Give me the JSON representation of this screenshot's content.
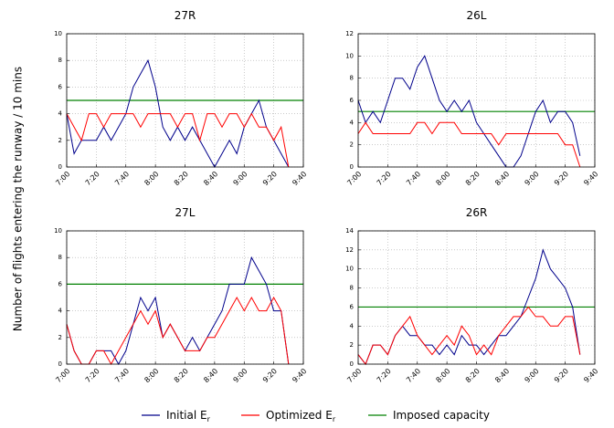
{
  "y_label": "Number of flights entering the runway / 10 mins",
  "legend": [
    {
      "label": "Initial E",
      "subscript": "r",
      "color": "#00008b"
    },
    {
      "label": "Optimized E",
      "subscript": "r",
      "color": "#ff0000"
    },
    {
      "label": "Imposed capacity",
      "color": "#008000"
    }
  ],
  "chart_data": [
    {
      "type": "line",
      "title": "27R",
      "x": [
        420,
        425,
        430,
        435,
        440,
        445,
        450,
        455,
        460,
        465,
        470,
        475,
        480,
        485,
        490,
        495,
        500,
        505,
        510,
        515,
        520,
        525,
        530,
        535,
        540,
        545,
        550,
        555,
        560,
        565,
        570,
        575,
        580
      ],
      "xlim": [
        420,
        580
      ],
      "xticks": [
        {
          "value": 420,
          "label": "7:00"
        },
        {
          "value": 440,
          "label": "7:20"
        },
        {
          "value": 460,
          "label": "7:40"
        },
        {
          "value": 480,
          "label": "8:00"
        },
        {
          "value": 500,
          "label": "8:20"
        },
        {
          "value": 520,
          "label": "8:40"
        },
        {
          "value": 540,
          "label": "9:00"
        },
        {
          "value": 560,
          "label": "9:20"
        },
        {
          "value": 580,
          "label": "9:40"
        }
      ],
      "ylim": [
        0,
        10
      ],
      "yticks": [
        0,
        2,
        4,
        6,
        8,
        10
      ],
      "grid": true,
      "capacity": 5,
      "series": [
        {
          "values": [
            4,
            1,
            2,
            2,
            2,
            3,
            2,
            3,
            4,
            6,
            7,
            8,
            6,
            3,
            2,
            3,
            2,
            3,
            2,
            1,
            0,
            1,
            2,
            1,
            3,
            4,
            5,
            3,
            2,
            1,
            0,
            null,
            null
          ]
        },
        {
          "values": [
            4,
            3,
            2,
            4,
            4,
            3,
            4,
            4,
            4,
            4,
            3,
            4,
            4,
            4,
            4,
            3,
            4,
            4,
            2,
            4,
            4,
            3,
            4,
            4,
            3,
            4,
            3,
            3,
            2,
            3,
            0,
            null,
            null
          ]
        }
      ]
    },
    {
      "type": "line",
      "title": "26L",
      "x": [
        420,
        425,
        430,
        435,
        440,
        445,
        450,
        455,
        460,
        465,
        470,
        475,
        480,
        485,
        490,
        495,
        500,
        505,
        510,
        515,
        520,
        525,
        530,
        535,
        540,
        545,
        550,
        555,
        560,
        565,
        570,
        575,
        580
      ],
      "xlim": [
        420,
        580
      ],
      "xticks": [
        {
          "value": 420,
          "label": "7:00"
        },
        {
          "value": 440,
          "label": "7:20"
        },
        {
          "value": 460,
          "label": "7:40"
        },
        {
          "value": 480,
          "label": "8:00"
        },
        {
          "value": 500,
          "label": "8:20"
        },
        {
          "value": 520,
          "label": "8:40"
        },
        {
          "value": 540,
          "label": "9:00"
        },
        {
          "value": 560,
          "label": "9:20"
        },
        {
          "value": 580,
          "label": "9:40"
        }
      ],
      "ylim": [
        0,
        12
      ],
      "yticks": [
        0,
        2,
        4,
        6,
        8,
        10,
        12
      ],
      "grid": true,
      "capacity": 5,
      "series": [
        {
          "values": [
            6,
            4,
            5,
            4,
            6,
            8,
            8,
            7,
            9,
            10,
            8,
            6,
            5,
            6,
            5,
            6,
            4,
            3,
            2,
            1,
            0,
            0,
            1,
            3,
            5,
            6,
            4,
            5,
            5,
            4,
            1,
            null,
            null
          ]
        },
        {
          "values": [
            3,
            4,
            3,
            3,
            3,
            3,
            3,
            3,
            4,
            4,
            3,
            4,
            4,
            4,
            3,
            3,
            3,
            3,
            3,
            2,
            3,
            3,
            3,
            3,
            3,
            3,
            3,
            3,
            2,
            2,
            0,
            null,
            null
          ]
        }
      ]
    },
    {
      "type": "line",
      "title": "27L",
      "x": [
        420,
        425,
        430,
        435,
        440,
        445,
        450,
        455,
        460,
        465,
        470,
        475,
        480,
        485,
        490,
        495,
        500,
        505,
        510,
        515,
        520,
        525,
        530,
        535,
        540,
        545,
        550,
        555,
        560,
        565,
        570,
        575,
        580
      ],
      "xlim": [
        420,
        580
      ],
      "xticks": [
        {
          "value": 420,
          "label": "7:00"
        },
        {
          "value": 440,
          "label": "7:20"
        },
        {
          "value": 460,
          "label": "7:40"
        },
        {
          "value": 480,
          "label": "8:00"
        },
        {
          "value": 500,
          "label": "8:20"
        },
        {
          "value": 520,
          "label": "8:40"
        },
        {
          "value": 540,
          "label": "9:00"
        },
        {
          "value": 560,
          "label": "9:20"
        },
        {
          "value": 580,
          "label": "9:40"
        }
      ],
      "ylim": [
        0,
        10
      ],
      "yticks": [
        0,
        2,
        4,
        6,
        8,
        10
      ],
      "grid": true,
      "capacity": 6,
      "series": [
        {
          "values": [
            3,
            1,
            0,
            0,
            1,
            1,
            1,
            0,
            1,
            3,
            5,
            4,
            5,
            2,
            3,
            2,
            1,
            2,
            1,
            2,
            3,
            4,
            6,
            6,
            6,
            8,
            7,
            6,
            4,
            4,
            0,
            null,
            null
          ]
        },
        {
          "values": [
            3,
            1,
            0,
            0,
            1,
            1,
            0,
            1,
            2,
            3,
            4,
            3,
            4,
            2,
            3,
            2,
            1,
            1,
            1,
            2,
            2,
            3,
            4,
            5,
            4,
            5,
            4,
            4,
            5,
            4,
            0,
            null,
            null
          ]
        }
      ]
    },
    {
      "type": "line",
      "title": "26R",
      "x": [
        420,
        425,
        430,
        435,
        440,
        445,
        450,
        455,
        460,
        465,
        470,
        475,
        480,
        485,
        490,
        495,
        500,
        505,
        510,
        515,
        520,
        525,
        530,
        535,
        540,
        545,
        550,
        555,
        560,
        565,
        570,
        575,
        580
      ],
      "xlim": [
        420,
        580
      ],
      "xticks": [
        {
          "value": 420,
          "label": "7:00"
        },
        {
          "value": 440,
          "label": "7:20"
        },
        {
          "value": 460,
          "label": "7:40"
        },
        {
          "value": 480,
          "label": "8:00"
        },
        {
          "value": 500,
          "label": "8:20"
        },
        {
          "value": 520,
          "label": "8:40"
        },
        {
          "value": 540,
          "label": "9:00"
        },
        {
          "value": 560,
          "label": "9:20"
        },
        {
          "value": 580,
          "label": "9:40"
        }
      ],
      "ylim": [
        0,
        14
      ],
      "yticks": [
        0,
        2,
        4,
        6,
        8,
        10,
        12,
        14
      ],
      "grid": true,
      "capacity": 6,
      "series": [
        {
          "values": [
            1,
            0,
            2,
            2,
            1,
            3,
            4,
            3,
            3,
            2,
            2,
            1,
            2,
            1,
            3,
            2,
            2,
            1,
            2,
            3,
            3,
            4,
            5,
            7,
            9,
            12,
            10,
            9,
            8,
            6,
            1,
            null,
            null
          ]
        },
        {
          "values": [
            1,
            0,
            2,
            2,
            1,
            3,
            4,
            5,
            3,
            2,
            1,
            2,
            3,
            2,
            4,
            3,
            1,
            2,
            1,
            3,
            4,
            5,
            5,
            6,
            5,
            5,
            4,
            4,
            5,
            5,
            1,
            null,
            null
          ]
        }
      ]
    }
  ]
}
